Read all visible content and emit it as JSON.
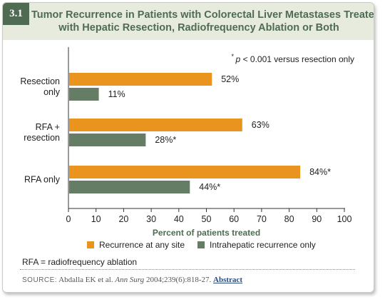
{
  "figure_number": "3.1",
  "title_lines": [
    "Tumor Recurrence in Patients with Colorectal Liver Metastases Treated",
    "with Hepatic Resection, Radiofrequency Ablation or Both"
  ],
  "footnote_sig": "* p < 0.001 versus resection only",
  "abbreviation_note": "RFA = radiofrequency ablation",
  "source": {
    "label": "SOURCE:",
    "text_before": "Abdalla EK et al.",
    "journal": "Ann Surg",
    "text_after": "2004;239(6):818-27.",
    "link": "Abstract"
  },
  "colors": {
    "recurrence": "#e8941f",
    "intrahepatic": "#647d64",
    "accent": "#4f6b52"
  },
  "chart_data": {
    "type": "bar",
    "orientation": "horizontal",
    "categories": [
      [
        "Resection",
        "only"
      ],
      [
        "RFA +",
        "resection"
      ],
      [
        "RFA only"
      ]
    ],
    "series": [
      {
        "name": "Recurrence at any site",
        "values": [
          52,
          63,
          84
        ],
        "labels": [
          "52%",
          "63%",
          "84%*"
        ]
      },
      {
        "name": "Intrahepatic recurrence only",
        "values": [
          11,
          28,
          44
        ],
        "labels": [
          "11%",
          "28%*",
          "44%*"
        ]
      }
    ],
    "xlabel": "Percent of patients treated",
    "xlim": [
      0,
      100
    ],
    "xticks": [
      0,
      10,
      20,
      30,
      40,
      50,
      60,
      70,
      80,
      90,
      100
    ],
    "legend": "bottom"
  }
}
